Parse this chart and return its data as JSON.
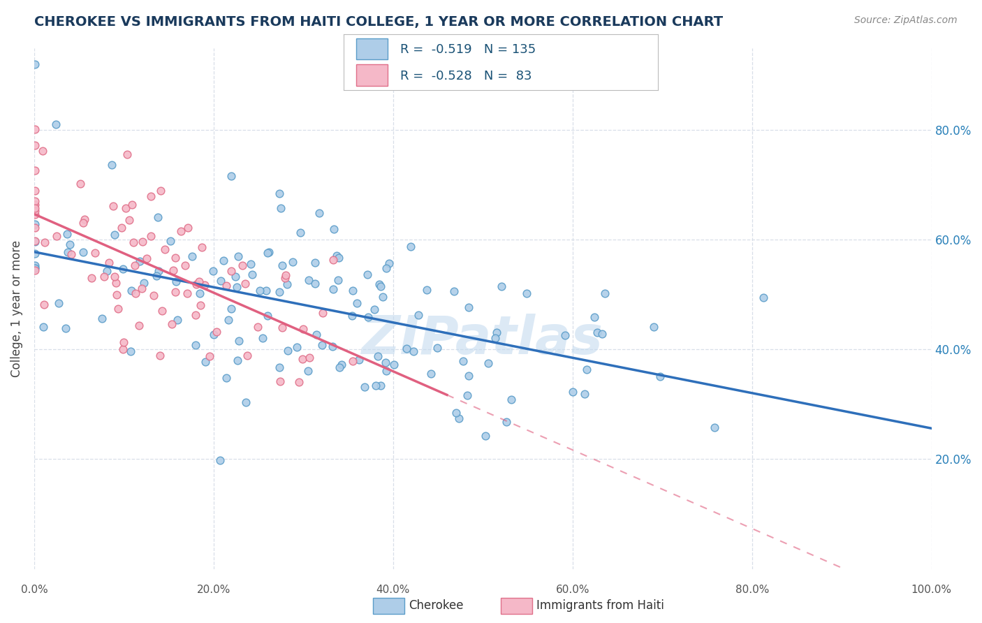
{
  "title": "CHEROKEE VS IMMIGRANTS FROM HAITI COLLEGE, 1 YEAR OR MORE CORRELATION CHART",
  "source_text": "Source: ZipAtlas.com",
  "ylabel": "College, 1 year or more",
  "xlim": [
    0.0,
    1.0
  ],
  "ylim": [
    0.0,
    0.95
  ],
  "x_tick_vals": [
    0.0,
    0.2,
    0.4,
    0.6,
    0.8,
    1.0
  ],
  "y_tick_vals": [
    0.2,
    0.4,
    0.6,
    0.8
  ],
  "cherokee_color": "#aecde8",
  "cherokee_edge_color": "#5b9dc9",
  "haiti_color": "#f5b8c8",
  "haiti_edge_color": "#e0708a",
  "line_cherokee_color": "#2e6fba",
  "line_haiti_color": "#e06080",
  "legend_cherokee_label": "Cherokee",
  "legend_haiti_label": "Immigrants from Haiti",
  "R_cherokee": -0.519,
  "N_cherokee": 135,
  "R_haiti": -0.528,
  "N_haiti": 83,
  "watermark_text": "ZIPatlas",
  "watermark_color": "#c0d8ee",
  "watermark_alpha": 0.55,
  "title_color": "#1a3a5c",
  "source_color": "#888888",
  "legend_text_color": "#1a5276",
  "background_color": "#ffffff",
  "grid_color": "#d8dfe8",
  "marker_size": 60,
  "seed_cherokee": 42,
  "seed_haiti": 7
}
